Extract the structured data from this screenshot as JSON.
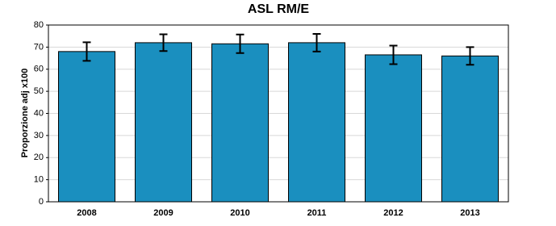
{
  "chart_data": {
    "type": "bar",
    "title": "ASL RM/E",
    "ylabel": "Proporzione adj x100",
    "categories": [
      "2008",
      "2009",
      "2010",
      "2011",
      "2012",
      "2013"
    ],
    "values": [
      68,
      72,
      71.5,
      72,
      66.5,
      66
    ],
    "errors": [
      4.2,
      3.8,
      4.2,
      4,
      4.2,
      4
    ],
    "color": "#1a8fbf",
    "ylim": [
      0,
      80
    ],
    "yticks": [
      0,
      10,
      20,
      30,
      40,
      50,
      60,
      70,
      80
    ],
    "grid": true
  }
}
